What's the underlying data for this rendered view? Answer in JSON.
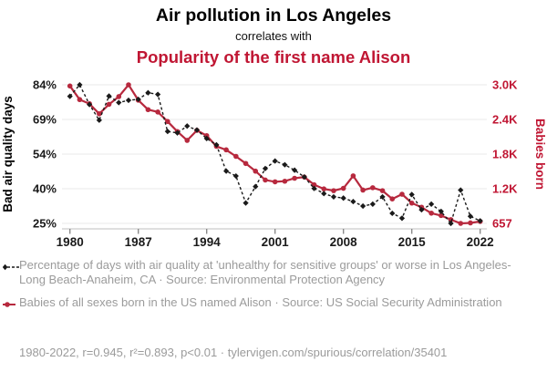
{
  "title": {
    "main": "Air pollution in Los Angeles",
    "connector": "correlates with",
    "secondary": "Popularity of the first name Alison"
  },
  "colors": {
    "accent_red": "#c01633",
    "line_red": "#b7293e",
    "line_black": "#1a1a1a",
    "grid": "#eaeaea",
    "axis_line": "#cccccc",
    "tick": "#8a8a8a",
    "muted_text": "#9b9b9b"
  },
  "chart_data": {
    "type": "line",
    "x": [
      1980,
      1981,
      1982,
      1983,
      1984,
      1985,
      1986,
      1987,
      1988,
      1989,
      1990,
      1991,
      1992,
      1993,
      1994,
      1995,
      1996,
      1997,
      1998,
      1999,
      2000,
      2001,
      2002,
      2003,
      2004,
      2005,
      2006,
      2007,
      2008,
      2009,
      2010,
      2011,
      2012,
      2013,
      2014,
      2015,
      2016,
      2017,
      2018,
      2019,
      2020,
      2021,
      2022
    ],
    "x_ticks": [
      "1980",
      "1987",
      "1994",
      "2001",
      "2008",
      "2015",
      "2022"
    ],
    "axes": {
      "left_label": "Bad air quality days",
      "right_label": "Babies born",
      "left_ticks": [
        "84%",
        "69%",
        "54%",
        "40%",
        "25%"
      ],
      "right_ticks": [
        "3.0K",
        "2.4K",
        "1.8K",
        "1.2K",
        "657"
      ],
      "left_min": 25.3,
      "left_max": 84.4,
      "right_min": 657,
      "right_max": 3000,
      "grid": true,
      "legend_position": "bottom"
    },
    "series": [
      {
        "name": "Percentage of days with bad air quality, Los Angeles",
        "axis": "left",
        "style": "dashed-diamond",
        "values": [
          79.5,
          84.4,
          76.0,
          69.3,
          79.6,
          76.8,
          77.8,
          78.2,
          81.0,
          80.3,
          64.5,
          63.9,
          66.8,
          65.1,
          61.5,
          58.8,
          47.6,
          45.5,
          34.0,
          41.0,
          48.7,
          51.9,
          50.3,
          48.0,
          45.1,
          40.2,
          38.0,
          36.6,
          36.1,
          34.6,
          32.7,
          33.5,
          36.6,
          29.6,
          27.5,
          37.6,
          31.1,
          33.5,
          30.4,
          25.3,
          39.5,
          28.3,
          26.4
        ]
      },
      {
        "name": "Babies of all sexes born in the US named Alison",
        "axis": "right",
        "style": "solid-dot",
        "values": [
          2980,
          2750,
          2680,
          2510,
          2670,
          2800,
          3000,
          2740,
          2580,
          2540,
          2380,
          2210,
          2060,
          2230,
          2140,
          1960,
          1900,
          1790,
          1670,
          1540,
          1390,
          1360,
          1370,
          1420,
          1440,
          1310,
          1240,
          1210,
          1250,
          1460,
          1220,
          1260,
          1210,
          1070,
          1150,
          1000,
          930,
          830,
          790,
          720,
          657,
          665,
          690
        ]
      }
    ]
  },
  "legend": {
    "entries": [
      {
        "label": "Percentage of days with air quality at 'unhealthy for sensitive groups' or worse in Los Angeles-Long Beach-Anaheim, CA · Source: Environmental Protection Agency"
      },
      {
        "label": "Babies of all sexes born in the US named Alison · Source: US Social Security Administration"
      }
    ]
  },
  "footer": {
    "text": "1980-2022, r=0.945, r²=0.893, p<0.01 · tylervigen.com/spurious/correlation/35401"
  }
}
